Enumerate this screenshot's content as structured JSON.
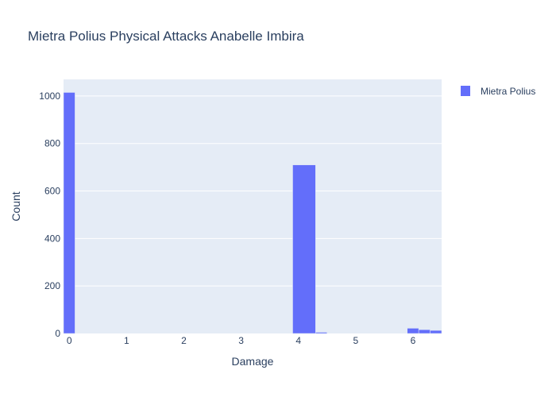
{
  "chart_data": {
    "type": "histogram",
    "title": "Mietra Polius Physical Attacks Anabelle Imbira",
    "xlabel": "Damage",
    "ylabel": "Count",
    "xlim": [
      -0.1,
      6.5
    ],
    "ylim": [
      0,
      1070
    ],
    "bin_width": 0.2,
    "x_ticks": [
      0,
      1,
      2,
      3,
      4,
      5,
      6
    ],
    "y_ticks": [
      0,
      200,
      400,
      600,
      800,
      1000
    ],
    "series": [
      {
        "name": "Mietra Polius",
        "color": "#636efa",
        "bins": [
          {
            "x0": -0.1,
            "x1": 0.1,
            "count": 1015
          },
          {
            "x0": 3.9,
            "x1": 4.3,
            "count": 710
          },
          {
            "x0": 4.3,
            "x1": 4.5,
            "count": 5
          },
          {
            "x0": 5.9,
            "x1": 6.1,
            "count": 22
          },
          {
            "x0": 6.1,
            "x1": 6.3,
            "count": 16
          },
          {
            "x0": 6.3,
            "x1": 6.5,
            "count": 13
          }
        ]
      }
    ],
    "grid": true,
    "plot_bgcolor": "#e5ecf6",
    "legend_position": "top-right"
  }
}
